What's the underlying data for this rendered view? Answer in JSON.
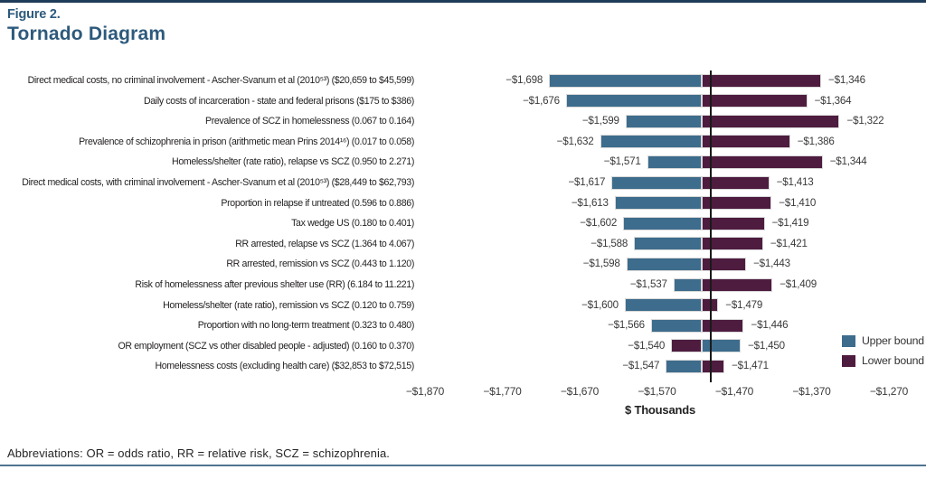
{
  "figure": {
    "eyebrow": "Figure 2.",
    "title": "Tornado Diagram"
  },
  "footnote": "Abbreviations: OR = odds ratio, RR = relative risk, SCZ = schizophrenia.",
  "chart_data": {
    "type": "bar",
    "variant": "tornado",
    "orientation": "horizontal",
    "xlabel": "$ Thousands",
    "xlim": [
      -1870,
      -1270
    ],
    "base_case": -1500,
    "grid": false,
    "legend_position": "right",
    "legend": [
      {
        "name": "Upper bound",
        "color": "#3d6c8c"
      },
      {
        "name": "Lower bound",
        "color": "#4e1c3f"
      }
    ],
    "x_ticks": [
      {
        "value": -1870,
        "label": "−$1,870"
      },
      {
        "value": -1770,
        "label": "−$1,770"
      },
      {
        "value": -1670,
        "label": "−$1,670"
      },
      {
        "value": -1570,
        "label": "−$1,570"
      },
      {
        "value": -1470,
        "label": "−$1,470"
      },
      {
        "value": -1370,
        "label": "−$1,370"
      },
      {
        "value": -1270,
        "label": "−$1,270"
      }
    ],
    "rows": [
      {
        "label": "Direct medical costs, no criminal involvement - Ascher-Svanum et al (2010⁵³) ($20,659 to $45,599)",
        "upper": -1698,
        "lower": -1346,
        "upper_label": "−$1,698",
        "lower_label": "−$1,346"
      },
      {
        "label": "Daily costs of incarceration - state and federal prisons ($175 to $386)",
        "upper": -1676,
        "lower": -1364,
        "upper_label": "−$1,676",
        "lower_label": "−$1,364"
      },
      {
        "label": "Prevalence of SCZ in homelessness (0.067 to 0.164)",
        "upper": -1599,
        "lower": -1322,
        "upper_label": "−$1,599",
        "lower_label": "−$1,322"
      },
      {
        "label": "Prevalence of schizophrenia in prison (arithmetic mean Prins 2014¹⁶) (0.017 to 0.058)",
        "upper": -1632,
        "lower": -1386,
        "upper_label": "−$1,632",
        "lower_label": "−$1,386"
      },
      {
        "label": "Homeless/shelter (rate ratio), relapse vs SCZ  (0.950 to 2.271)",
        "upper": -1571,
        "lower": -1344,
        "upper_label": "−$1,571",
        "lower_label": "−$1,344"
      },
      {
        "label": "Direct medical costs, with criminal involvement - Ascher-Svanum et al (2010⁵³) ($28,449 to $62,793)",
        "upper": -1617,
        "lower": -1413,
        "upper_label": "−$1,617",
        "lower_label": "−$1,413"
      },
      {
        "label": "Proportion in relapse if untreated (0.596 to 0.886)",
        "upper": -1613,
        "lower": -1410,
        "upper_label": "−$1,613",
        "lower_label": "−$1,410"
      },
      {
        "label": "Tax wedge US (0.180 to 0.401)",
        "upper": -1602,
        "lower": -1419,
        "upper_label": "−$1,602",
        "lower_label": "−$1,419"
      },
      {
        "label": "RR arrested, relapse vs SCZ (1.364 to 4.067)",
        "upper": -1588,
        "lower": -1421,
        "upper_label": "−$1,588",
        "lower_label": "−$1,421"
      },
      {
        "label": "RR arrested, remission vs SCZ (0.443 to 1.120)",
        "upper": -1598,
        "lower": -1443,
        "upper_label": "−$1,598",
        "lower_label": "−$1,443"
      },
      {
        "label": "Risk of homelessness after previous shelter use (RR) (6.184 to 11.221)",
        "upper": -1537,
        "lower": -1409,
        "upper_label": "−$1,537",
        "lower_label": "−$1,409"
      },
      {
        "label": "Homeless/shelter (rate ratio), remission vs SCZ (0.120 to 0.759)",
        "upper": -1600,
        "lower": -1479,
        "upper_label": "−$1,600",
        "lower_label": "−$1,479"
      },
      {
        "label": "Proportion with no long-term treatment (0.323 to 0.480)",
        "upper": -1566,
        "lower": -1446,
        "upper_label": "−$1,566",
        "lower_label": "−$1,446"
      },
      {
        "label": "OR employment (SCZ vs other disabled people - adjusted) (0.160 to 0.370)",
        "upper": -1450,
        "lower": -1540,
        "upper_label": "−$1,450",
        "lower_label": "−$1,540"
      },
      {
        "label": "Homelessness costs (excluding health care) ($32,853 to $72,515)",
        "upper": -1547,
        "lower": -1471,
        "upper_label": "−$1,547",
        "lower_label": "−$1,471"
      }
    ]
  },
  "colors": {
    "title": "#2d5a7c",
    "upper_bound": "#3d6c8c",
    "lower_bound": "#4e1c3f",
    "top_bar": "#1e3c5a",
    "bottom_rule": "#50738f"
  }
}
